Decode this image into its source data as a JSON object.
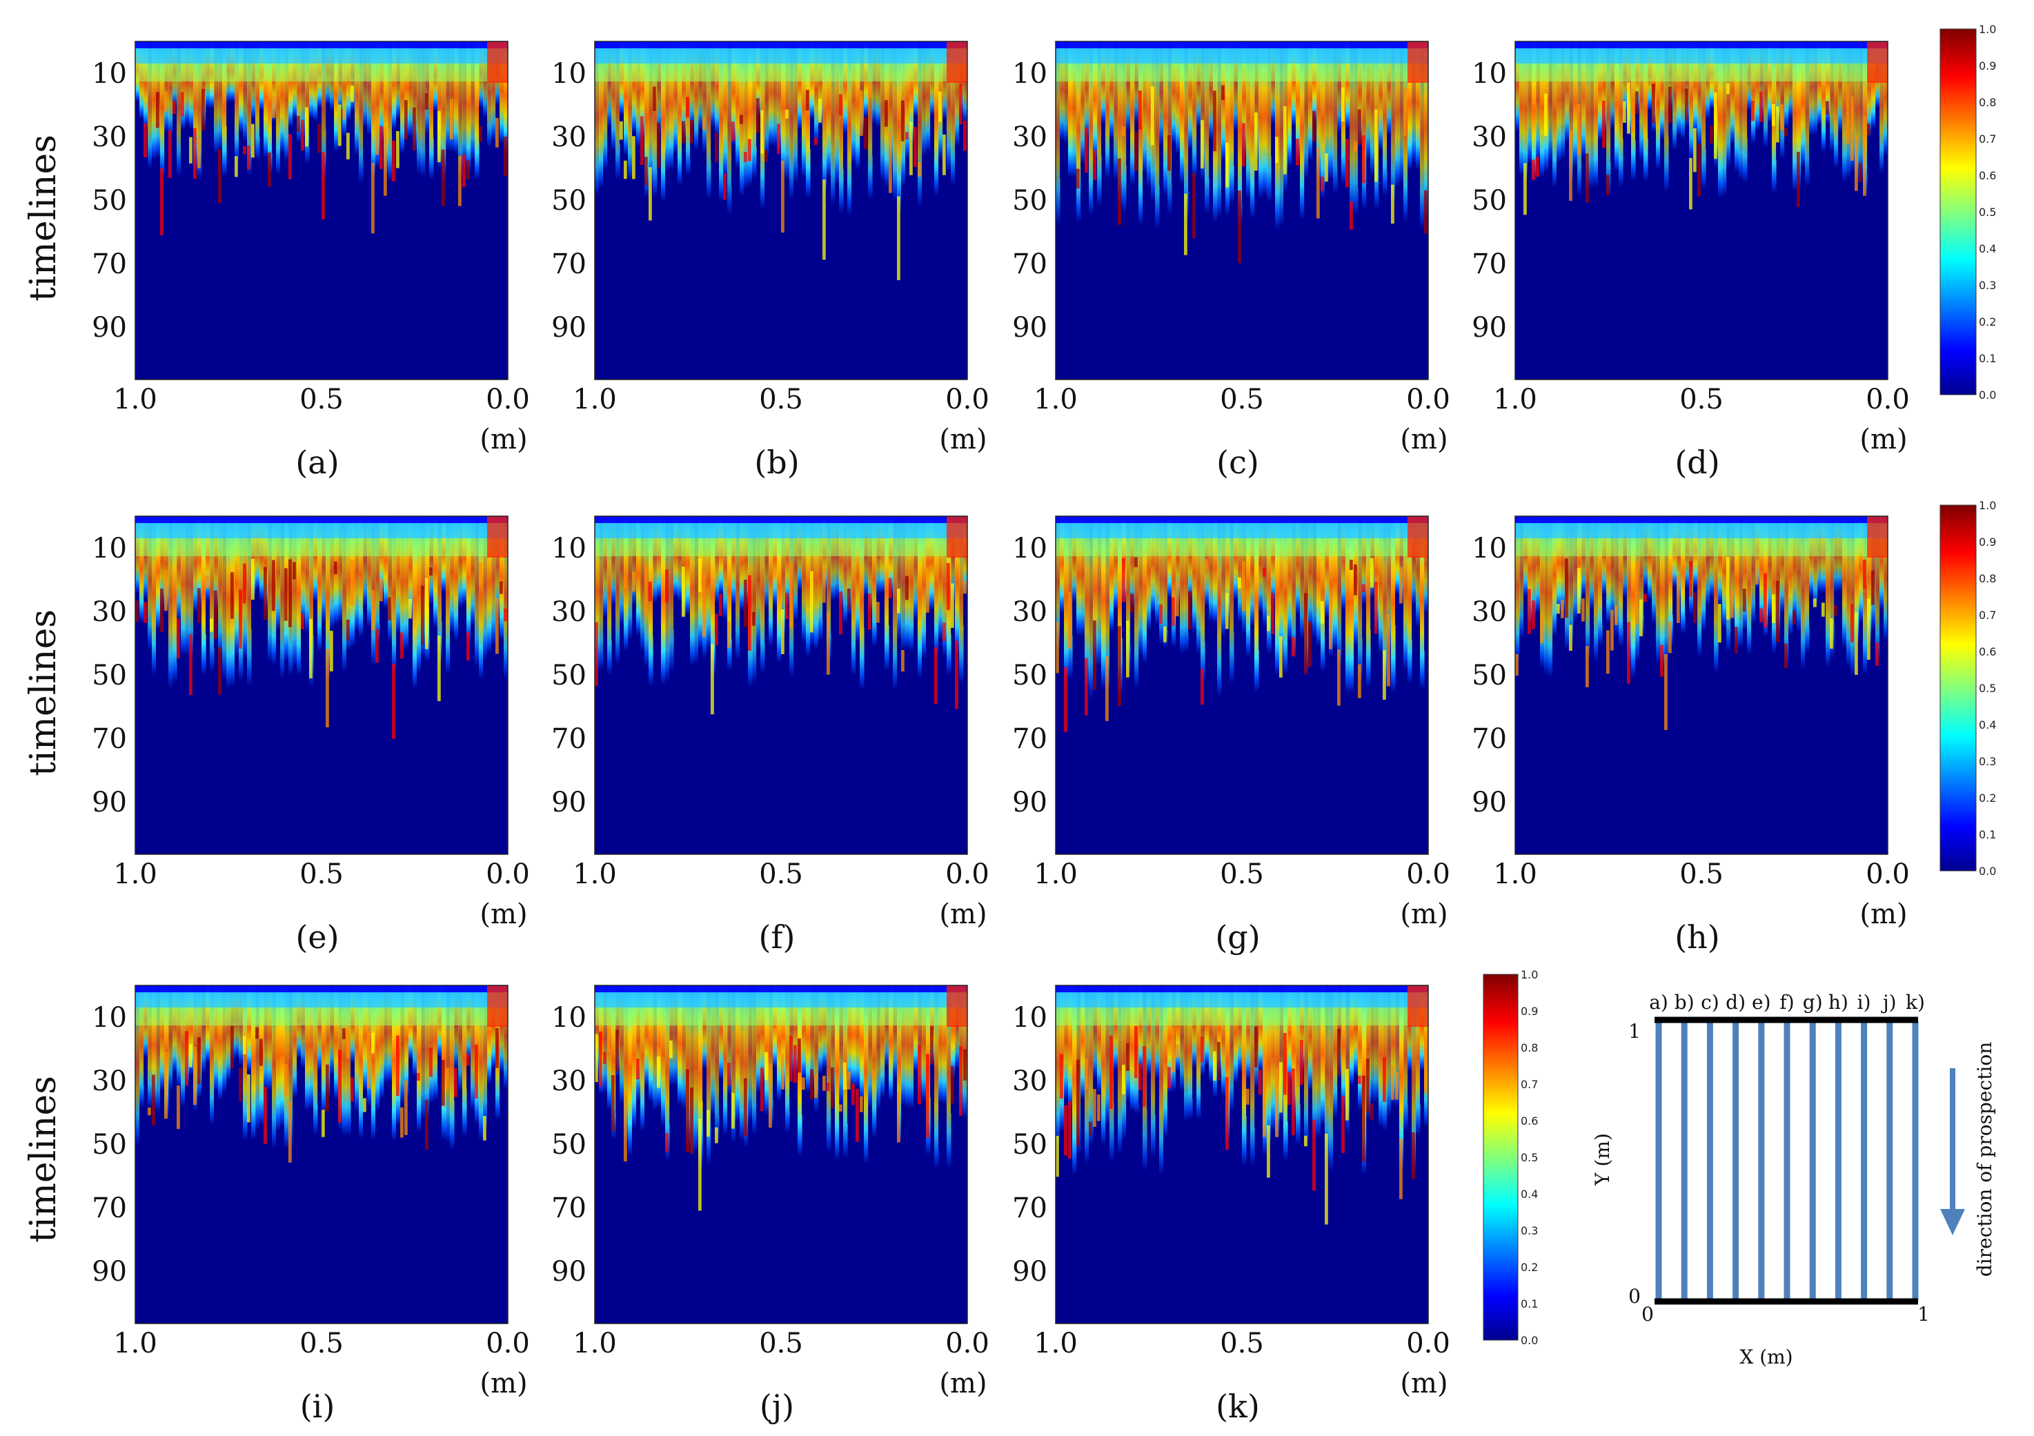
{
  "figure": {
    "y_axis_label": "timelines",
    "y_ticks": [
      "10",
      "30",
      "50",
      "70",
      "90"
    ],
    "x_ticks": [
      "1.0",
      "0.5",
      "0.0"
    ],
    "x_unit": "(m)",
    "colorbar_ticks": [
      "1.0",
      "0.9",
      "0.8",
      "0.7",
      "0.6",
      "0.5",
      "0.4",
      "0.3",
      "0.2",
      "0.1",
      "0.0"
    ]
  },
  "panels": [
    {
      "caption": "(a)",
      "depth": 0.45
    },
    {
      "caption": "(b)",
      "depth": 0.55
    },
    {
      "caption": "(c)",
      "depth": 0.6
    },
    {
      "caption": "(d)",
      "depth": 0.5
    },
    {
      "caption": "(e)",
      "depth": 0.55
    },
    {
      "caption": "(f)",
      "depth": 0.55
    },
    {
      "caption": "(g)",
      "depth": 0.58
    },
    {
      "caption": "(h)",
      "depth": 0.52
    },
    {
      "caption": "(i)",
      "depth": 0.52
    },
    {
      "caption": "(j)",
      "depth": 0.6
    },
    {
      "caption": "(k)",
      "depth": 0.6
    }
  ],
  "schematic": {
    "line_labels": [
      "a)",
      "b)",
      "c)",
      "d)",
      "e)",
      "f)",
      "g)",
      "h)",
      "i)",
      "j)",
      "k)"
    ],
    "x_label": "X (m)",
    "y_label": "Y (m)",
    "x_ticks": [
      "0",
      "1"
    ],
    "y_ticks": [
      "1",
      "0"
    ],
    "direction_label": "direction of prospection",
    "line_color": "#4f81bd"
  },
  "colors": {
    "jet": [
      "#00008f",
      "#0000ff",
      "#00ffff",
      "#ffff00",
      "#ff0000",
      "#800000"
    ]
  }
}
